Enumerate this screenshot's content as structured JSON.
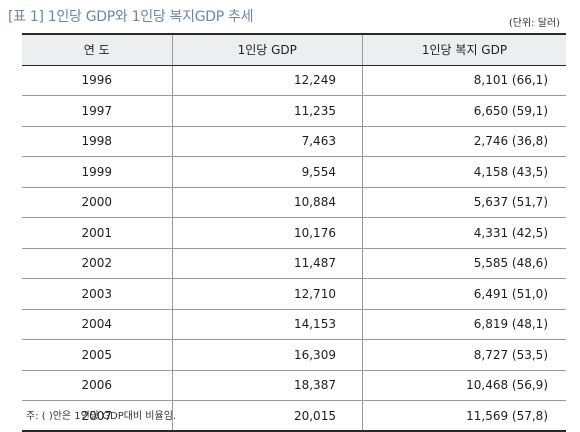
{
  "title": "[표 1] 1인당 GDP와 1인당 복지GDP 추세",
  "unit": "(단위: 달러)",
  "table": {
    "headers": [
      "연 도",
      "1인당 GDP",
      "1인당 복지 GDP"
    ],
    "rows": [
      [
        "1996",
        "12,249",
        "8,101 (66,1)"
      ],
      [
        "1997",
        "11,235",
        "6,650 (59,1)"
      ],
      [
        "1998",
        "7,463",
        "2,746 (36,8)"
      ],
      [
        "1999",
        "9,554",
        "4,158 (43,5)"
      ],
      [
        "2000",
        "10,884",
        "5,637 (51,7)"
      ],
      [
        "2001",
        "10,176",
        "4,331 (42,5)"
      ],
      [
        "2002",
        "11,487",
        "5,585 (48,6)"
      ],
      [
        "2003",
        "12,710",
        "6,491 (51,0)"
      ],
      [
        "2004",
        "14,153",
        "6,819 (48,1)"
      ],
      [
        "2005",
        "16,309",
        "8,727 (53,5)"
      ],
      [
        "2006",
        "18,387",
        "10,468 (56,9)"
      ],
      [
        "2007",
        "20,015",
        "11,569 (57,8)"
      ]
    ]
  },
  "note": "주: (   )안은 1인당 GDP대비 비율임."
}
